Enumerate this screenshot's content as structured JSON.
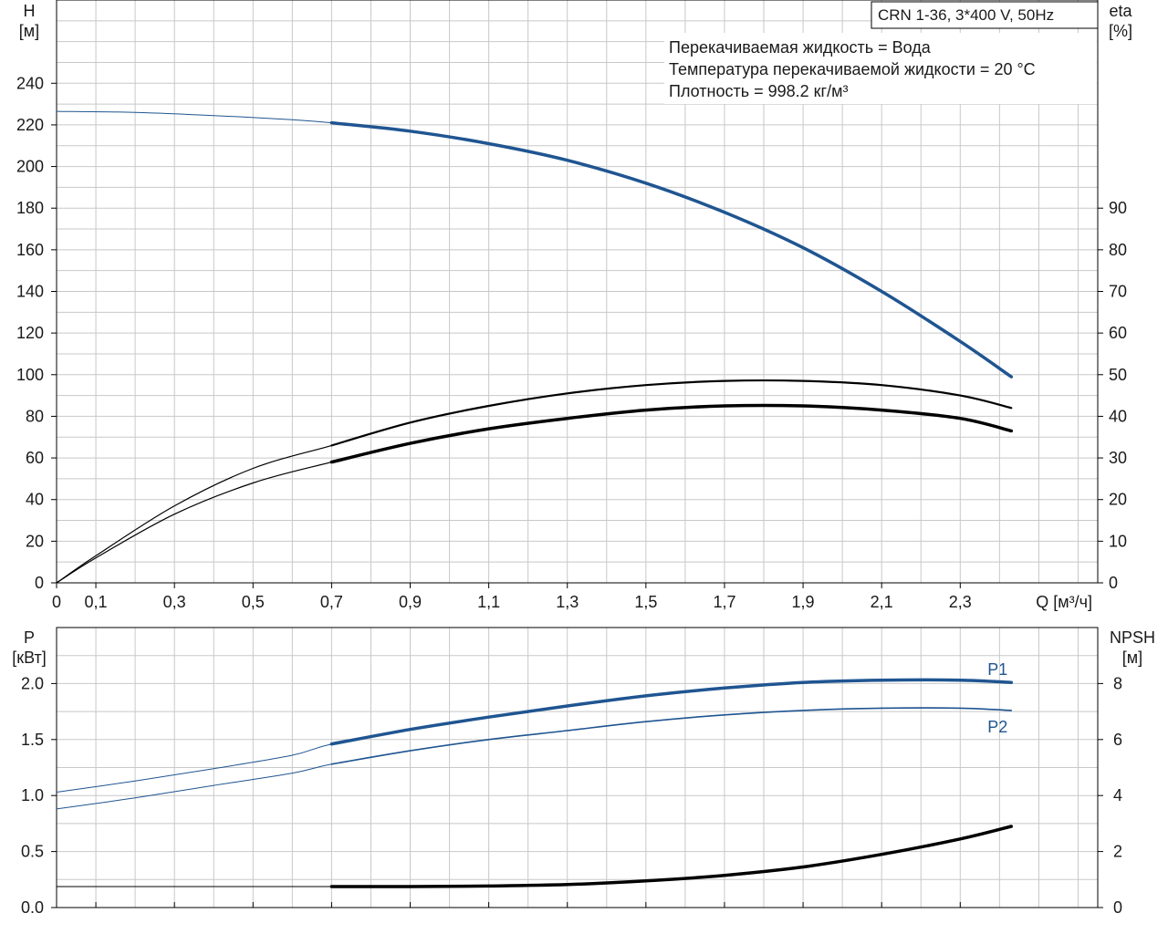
{
  "info_box": {
    "model": "CRN 1-36, 3*400 V, 50Hz",
    "lines": [
      "Перекачиваемая жидкость = Вода",
      "Температура перекачиваемой жидкости = 20 °C",
      "Плотность = 998.2 кг/м³"
    ]
  },
  "chart_data": [
    {
      "type": "line",
      "x_axis": {
        "label": "Q [м³/ч]",
        "range": [
          0,
          2.65
        ],
        "ticks": [
          0,
          0.1,
          0.3,
          0.5,
          0.7,
          0.9,
          1.1,
          1.3,
          1.5,
          1.7,
          1.9,
          2.1,
          2.3
        ],
        "tick_labels": [
          "0",
          "0,1",
          "0,3",
          "0,5",
          "0,7",
          "0,9",
          "1,1",
          "1,3",
          "1,5",
          "1,7",
          "1,9",
          "2,1",
          "2,3"
        ]
      },
      "y_left": {
        "label_line1": "H",
        "label_line2": "[м]",
        "range": [
          0,
          280
        ],
        "ticks": [
          0,
          20,
          40,
          60,
          80,
          100,
          120,
          140,
          160,
          180,
          200,
          220,
          240
        ]
      },
      "y_right": {
        "label_line1": "eta",
        "label_line2": "[%]",
        "range": [
          0,
          140
        ],
        "ticks": [
          0,
          10,
          20,
          30,
          40,
          50,
          60,
          70,
          80,
          90
        ]
      },
      "grid": true,
      "duty_start_q": 0.7,
      "series": [
        {
          "key": "H",
          "axis": "left",
          "color": "#1f5591",
          "x": [
            0,
            0.2,
            0.4,
            0.6,
            0.7,
            0.9,
            1.1,
            1.3,
            1.5,
            1.7,
            1.9,
            2.1,
            2.3,
            2.43
          ],
          "y": [
            226.5,
            226,
            224.5,
            222.5,
            221,
            217,
            211,
            203,
            192,
            178,
            161,
            140,
            116,
            99
          ]
        },
        {
          "key": "eta_pump",
          "axis": "right",
          "color": "#000000",
          "x": [
            0,
            0.1,
            0.3,
            0.5,
            0.7,
            0.9,
            1.1,
            1.3,
            1.5,
            1.7,
            1.9,
            2.1,
            2.3,
            2.43
          ],
          "y": [
            0,
            6.5,
            18.5,
            27.5,
            33,
            38.5,
            42.5,
            45.5,
            47.5,
            48.5,
            48.5,
            47.5,
            45,
            42
          ]
        },
        {
          "key": "eta_total",
          "axis": "right",
          "color": "#000000",
          "x": [
            0,
            0.1,
            0.3,
            0.5,
            0.7,
            0.9,
            1.1,
            1.3,
            1.5,
            1.7,
            1.9,
            2.1,
            2.3,
            2.43
          ],
          "y": [
            0,
            6,
            16.5,
            24,
            29,
            33.5,
            37,
            39.5,
            41.5,
            42.5,
            42.5,
            41.5,
            39.5,
            36.5
          ]
        }
      ]
    },
    {
      "type": "line",
      "x_axis": {
        "range": [
          0,
          2.65
        ]
      },
      "y_left": {
        "label_line1": "P",
        "label_line2": "[кВт]",
        "range": [
          0,
          2.5
        ],
        "ticks": [
          0,
          0.5,
          1.0,
          1.5,
          2.0
        ],
        "tick_labels": [
          "0.0",
          "0.5",
          "1.0",
          "1.5",
          "2.0"
        ]
      },
      "y_right": {
        "label_line1": "NPSH",
        "label_line2": "[м]",
        "range": [
          0,
          10
        ],
        "ticks": [
          0,
          2,
          4,
          6,
          8
        ]
      },
      "grid": true,
      "duty_start_q": 0.7,
      "series": [
        {
          "name": "P1",
          "axis": "left",
          "color": "#1f5591",
          "x": [
            0,
            0.2,
            0.4,
            0.6,
            0.7,
            0.9,
            1.1,
            1.3,
            1.5,
            1.7,
            1.9,
            2.1,
            2.3,
            2.43
          ],
          "y": [
            1.03,
            1.13,
            1.24,
            1.36,
            1.46,
            1.59,
            1.7,
            1.8,
            1.89,
            1.96,
            2.01,
            2.03,
            2.03,
            2.01
          ]
        },
        {
          "name": "P2",
          "axis": "left",
          "color": "#1f5591",
          "x": [
            0,
            0.2,
            0.4,
            0.6,
            0.7,
            0.9,
            1.1,
            1.3,
            1.5,
            1.7,
            1.9,
            2.1,
            2.3,
            2.43
          ],
          "y": [
            0.88,
            0.98,
            1.09,
            1.2,
            1.28,
            1.4,
            1.5,
            1.58,
            1.66,
            1.72,
            1.76,
            1.78,
            1.78,
            1.76
          ]
        },
        {
          "key": "NPSH",
          "axis": "right",
          "color": "#000000",
          "x": [
            0,
            0.2,
            0.4,
            0.6,
            0.7,
            0.9,
            1.1,
            1.3,
            1.5,
            1.7,
            1.9,
            2.1,
            2.3,
            2.43
          ],
          "y": [
            0.75,
            0.75,
            0.75,
            0.75,
            0.75,
            0.75,
            0.77,
            0.82,
            0.95,
            1.15,
            1.45,
            1.9,
            2.45,
            2.9
          ]
        }
      ]
    }
  ]
}
